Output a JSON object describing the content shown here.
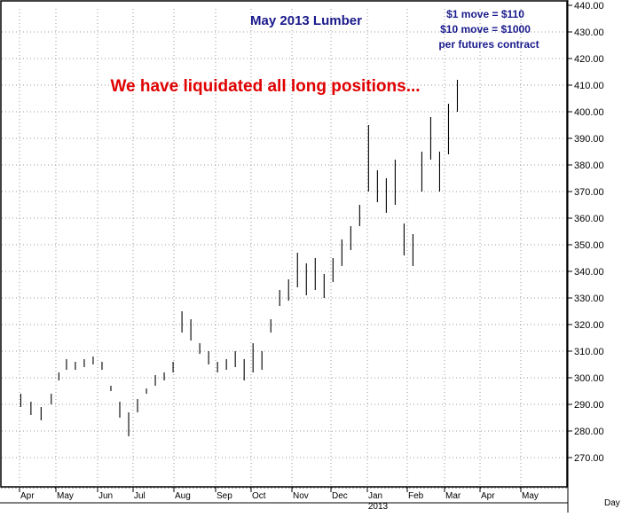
{
  "chart_data": {
    "type": "bar",
    "subtype": "ohlc-daily-price-bars",
    "title": "May 2013 Lumber",
    "annotations": {
      "contract_value_line1": "$1 move = $110",
      "contract_value_line2": "$10 move = $1000",
      "contract_value_line3": "per futures contract",
      "comment": "We have liquidated all long positions..."
    },
    "colors": {
      "title": "#1a1a8c",
      "info": "#1a1a8c",
      "comment": "#e00000",
      "bars": "#000000",
      "grid": "#9a9a9a",
      "frame": "#000000"
    },
    "y_axis": {
      "position": "right",
      "min": 260,
      "max": 440,
      "ticks": [
        "270.00",
        "280.00",
        "290.00",
        "300.00",
        "310.00",
        "320.00",
        "330.00",
        "340.00",
        "350.00",
        "360.00",
        "370.00",
        "380.00",
        "390.00",
        "400.00",
        "410.00",
        "420.00",
        "430.00",
        "440.00"
      ]
    },
    "x_axis": {
      "month_ticks": [
        "Apr",
        "May",
        "Jun",
        "Jul",
        "Aug",
        "Sep",
        "Oct",
        "Nov",
        "Dec",
        "Jan",
        "Feb",
        "Mar",
        "Apr",
        "May"
      ],
      "year_label": "2013",
      "unit_label": "Day"
    },
    "grid": true,
    "series": [
      {
        "points": [
          {
            "date": "2012-04-02",
            "high": 294,
            "low": 289
          },
          {
            "date": "2012-04-10",
            "high": 291,
            "low": 286
          },
          {
            "date": "2012-04-18",
            "high": 289,
            "low": 284
          },
          {
            "date": "2012-04-26",
            "high": 294,
            "low": 290
          },
          {
            "date": "2012-05-02",
            "high": 302,
            "low": 299
          },
          {
            "date": "2012-05-08",
            "high": 307,
            "low": 303
          },
          {
            "date": "2012-05-15",
            "high": 306,
            "low": 303
          },
          {
            "date": "2012-05-22",
            "high": 307,
            "low": 304
          },
          {
            "date": "2012-05-29",
            "high": 308,
            "low": 305
          },
          {
            "date": "2012-06-05",
            "high": 306,
            "low": 303
          },
          {
            "date": "2012-06-12",
            "high": 297,
            "low": 295
          },
          {
            "date": "2012-06-19",
            "high": 291,
            "low": 285
          },
          {
            "date": "2012-06-26",
            "high": 287,
            "low": 278
          },
          {
            "date": "2012-07-03",
            "high": 292,
            "low": 287
          },
          {
            "date": "2012-07-10",
            "high": 296,
            "low": 294
          },
          {
            "date": "2012-07-17",
            "high": 301,
            "low": 297
          },
          {
            "date": "2012-07-24",
            "high": 302,
            "low": 299
          },
          {
            "date": "2012-07-31",
            "high": 306,
            "low": 302
          },
          {
            "date": "2012-08-07",
            "high": 325,
            "low": 317
          },
          {
            "date": "2012-08-14",
            "high": 322,
            "low": 314
          },
          {
            "date": "2012-08-21",
            "high": 313,
            "low": 309
          },
          {
            "date": "2012-08-28",
            "high": 310,
            "low": 305
          },
          {
            "date": "2012-09-04",
            "high": 306,
            "low": 302
          },
          {
            "date": "2012-09-11",
            "high": 307,
            "low": 303
          },
          {
            "date": "2012-09-18",
            "high": 310,
            "low": 304
          },
          {
            "date": "2012-09-25",
            "high": 307,
            "low": 299
          },
          {
            "date": "2012-10-02",
            "high": 313,
            "low": 302
          },
          {
            "date": "2012-10-09",
            "high": 310,
            "low": 303
          },
          {
            "date": "2012-10-16",
            "high": 322,
            "low": 317
          },
          {
            "date": "2012-10-23",
            "high": 333,
            "low": 327
          },
          {
            "date": "2012-10-30",
            "high": 337,
            "low": 329
          },
          {
            "date": "2012-11-06",
            "high": 347,
            "low": 334
          },
          {
            "date": "2012-11-13",
            "high": 343,
            "low": 331
          },
          {
            "date": "2012-11-20",
            "high": 345,
            "low": 333
          },
          {
            "date": "2012-11-27",
            "high": 339,
            "low": 330
          },
          {
            "date": "2012-12-04",
            "high": 345,
            "low": 336
          },
          {
            "date": "2012-12-11",
            "high": 352,
            "low": 342
          },
          {
            "date": "2012-12-18",
            "high": 357,
            "low": 348
          },
          {
            "date": "2012-12-25",
            "high": 365,
            "low": 357
          },
          {
            "date": "2013-01-01",
            "high": 395,
            "low": 370
          },
          {
            "date": "2013-01-08",
            "high": 378,
            "low": 366
          },
          {
            "date": "2013-01-15",
            "high": 375,
            "low": 362
          },
          {
            "date": "2013-01-22",
            "high": 382,
            "low": 365
          },
          {
            "date": "2013-01-29",
            "high": 358,
            "low": 346
          },
          {
            "date": "2013-02-05",
            "high": 354,
            "low": 342
          },
          {
            "date": "2013-02-12",
            "high": 385,
            "low": 370
          },
          {
            "date": "2013-02-19",
            "high": 398,
            "low": 382
          },
          {
            "date": "2013-02-26",
            "high": 385,
            "low": 370
          },
          {
            "date": "2013-03-05",
            "high": 403,
            "low": 384
          },
          {
            "date": "2013-03-12",
            "high": 412,
            "low": 400
          }
        ]
      }
    ]
  }
}
